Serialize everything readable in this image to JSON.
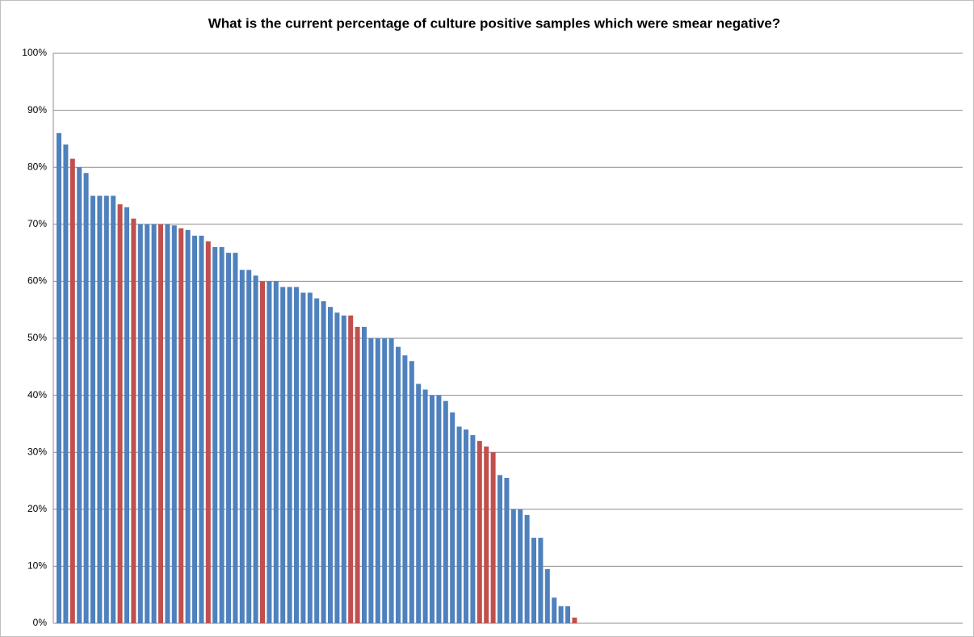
{
  "chart_data": {
    "type": "bar",
    "title": "What is the current percentage of culture positive samples which were smear negative?",
    "categories": [
      null,
      null,
      null,
      null,
      null,
      null,
      null,
      null,
      null,
      null,
      null,
      null,
      null,
      null,
      null,
      null,
      null,
      null,
      null,
      null,
      null,
      null,
      null,
      null,
      null,
      null,
      null,
      null,
      null,
      null,
      null,
      null,
      null,
      null,
      null,
      null,
      null,
      null,
      null,
      null,
      null,
      null,
      null,
      null,
      null,
      null,
      null,
      null,
      null,
      null,
      null,
      null,
      null,
      null,
      null,
      null,
      null,
      null,
      null,
      null,
      null,
      null,
      null,
      null,
      null,
      null,
      null,
      null,
      null,
      null,
      null,
      null,
      null,
      null,
      null,
      null,
      null
    ],
    "values": [
      86,
      84,
      81.5,
      80,
      79,
      75,
      75,
      75,
      75,
      73.5,
      73,
      71,
      70,
      70,
      70,
      70,
      70,
      69.8,
      69.3,
      69,
      68,
      68,
      67,
      66,
      66,
      65,
      65,
      62,
      62,
      61,
      60,
      60,
      60,
      59,
      59,
      59,
      58,
      58,
      57,
      56.5,
      55.5,
      54.5,
      54,
      54,
      52,
      52,
      50,
      50,
      50,
      50,
      48.5,
      47,
      46,
      42,
      41,
      40,
      40,
      39,
      37,
      34.5,
      34,
      33,
      32,
      31,
      30,
      26,
      25.5,
      20,
      20,
      19,
      15,
      15,
      9.5,
      4.5,
      3,
      3,
      1
    ],
    "colors": [
      "#4f81bd",
      "#4f81bd",
      "#c0504d",
      "#4f81bd",
      "#4f81bd",
      "#4f81bd",
      "#4f81bd",
      "#4f81bd",
      "#4f81bd",
      "#c0504d",
      "#4f81bd",
      "#c0504d",
      "#4f81bd",
      "#4f81bd",
      "#4f81bd",
      "#c0504d",
      "#4f81bd",
      "#4f81bd",
      "#c0504d",
      "#4f81bd",
      "#4f81bd",
      "#4f81bd",
      "#c0504d",
      "#4f81bd",
      "#4f81bd",
      "#4f81bd",
      "#4f81bd",
      "#4f81bd",
      "#4f81bd",
      "#4f81bd",
      "#c0504d",
      "#4f81bd",
      "#4f81bd",
      "#4f81bd",
      "#4f81bd",
      "#4f81bd",
      "#4f81bd",
      "#4f81bd",
      "#4f81bd",
      "#4f81bd",
      "#4f81bd",
      "#4f81bd",
      "#4f81bd",
      "#c0504d",
      "#c0504d",
      "#4f81bd",
      "#4f81bd",
      "#4f81bd",
      "#4f81bd",
      "#4f81bd",
      "#4f81bd",
      "#4f81bd",
      "#4f81bd",
      "#4f81bd",
      "#4f81bd",
      "#4f81bd",
      "#4f81bd",
      "#4f81bd",
      "#4f81bd",
      "#4f81bd",
      "#4f81bd",
      "#4f81bd",
      "#c0504d",
      "#c0504d",
      "#c0504d",
      "#4f81bd",
      "#4f81bd",
      "#4f81bd",
      "#4f81bd",
      "#4f81bd",
      "#4f81bd",
      "#4f81bd",
      "#4f81bd",
      "#4f81bd",
      "#4f81bd",
      "#4f81bd",
      "#c0504d"
    ],
    "ylim": [
      0,
      100
    ],
    "yticks": [
      {
        "value": 0,
        "label": "0%"
      },
      {
        "value": 10,
        "label": "10%"
      },
      {
        "value": 20,
        "label": "20%"
      },
      {
        "value": 30,
        "label": "30%"
      },
      {
        "value": 40,
        "label": "40%"
      },
      {
        "value": 50,
        "label": "50%"
      },
      {
        "value": 60,
        "label": "60%"
      },
      {
        "value": 70,
        "label": "70%"
      },
      {
        "value": 80,
        "label": "80%"
      },
      {
        "value": 90,
        "label": "90%"
      },
      {
        "value": 100,
        "label": "100%"
      }
    ],
    "grid": true
  }
}
